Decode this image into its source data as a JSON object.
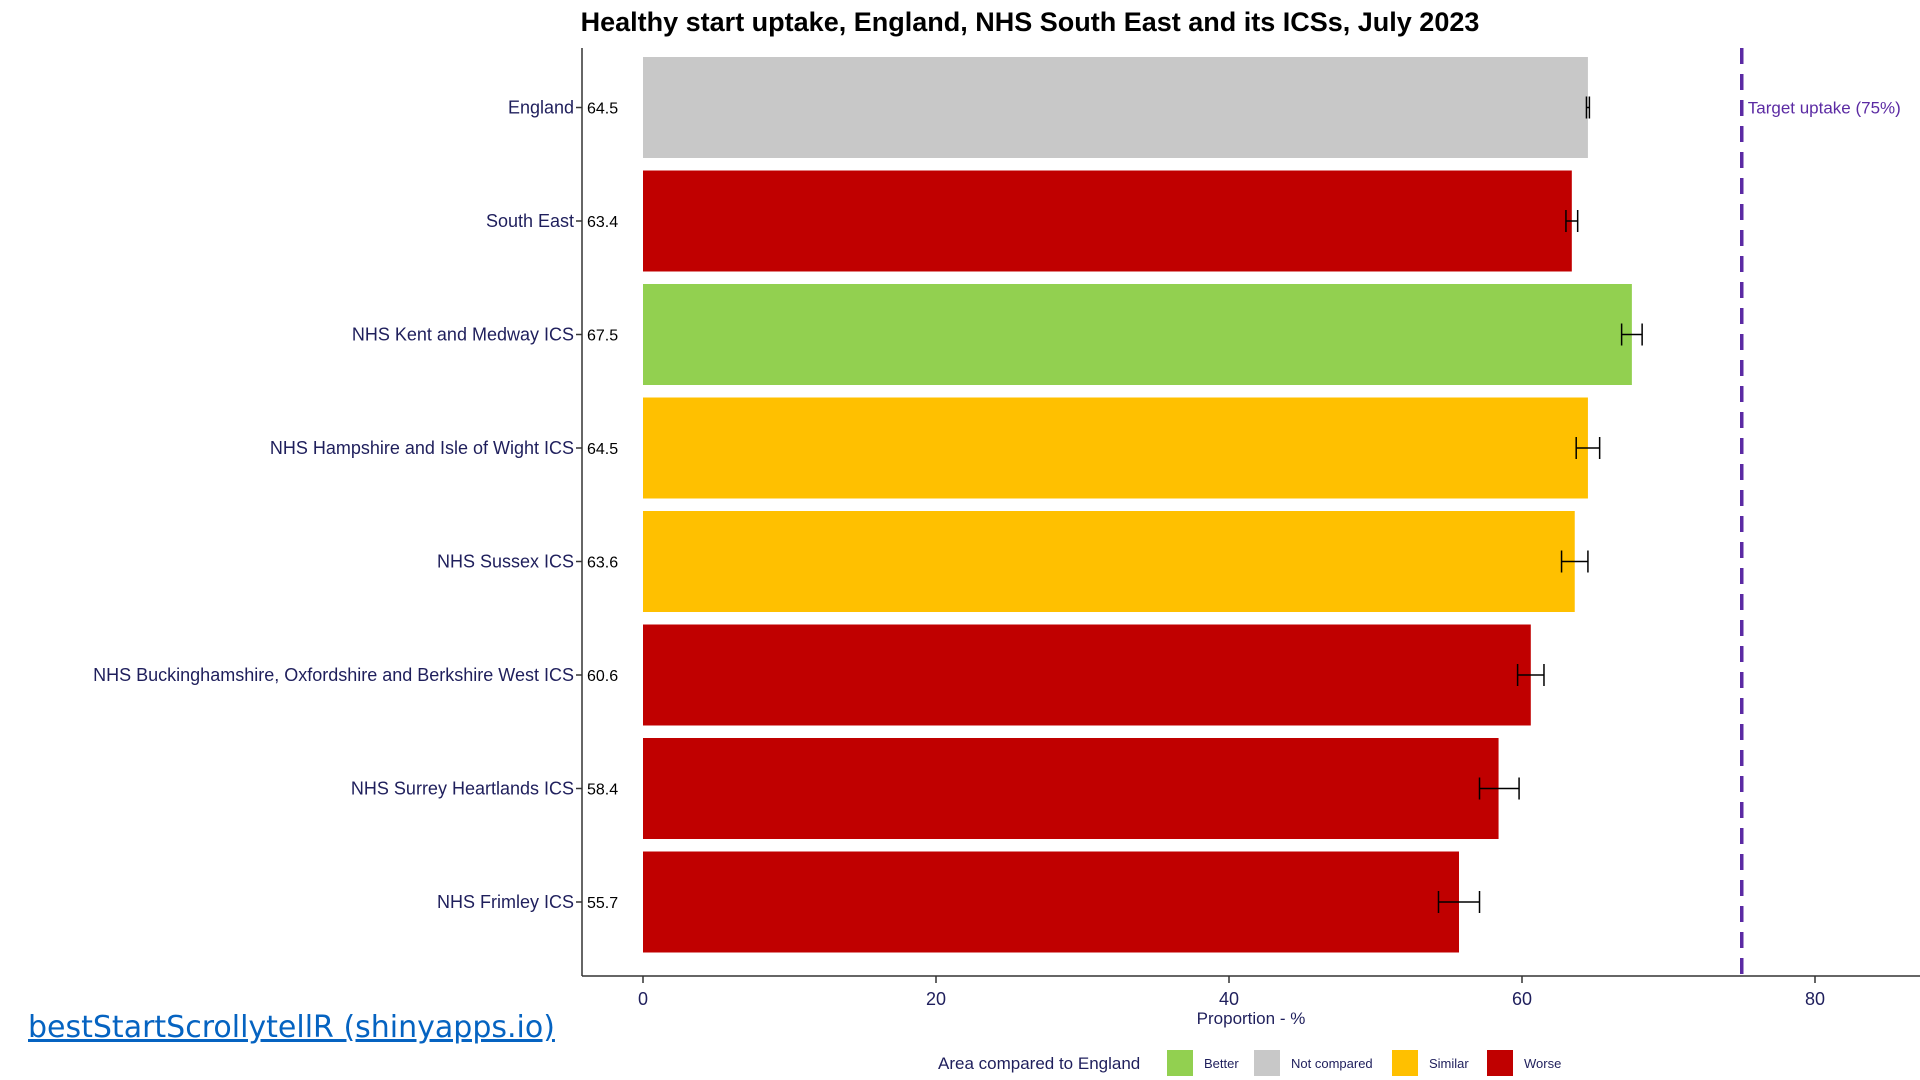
{
  "link": {
    "text": "bestStartScrollytellR (shinyapps.io)"
  },
  "colors": {
    "Better": "#92d050",
    "Not compared": "#c8c8c8",
    "Similar": "#ffc000",
    "Worse": "#c00000",
    "target_line": "#5b2aa3",
    "category_label": "#1f1f5c",
    "text": "#000000"
  },
  "chart_data": {
    "type": "bar",
    "orientation": "horizontal",
    "title": "Healthy start uptake, England, NHS South East and its ICSs, July 2023",
    "xlabel": "Proportion - %",
    "ylabel": "",
    "xlim": [
      -4,
      87
    ],
    "xticks": [
      0,
      20,
      40,
      60,
      80
    ],
    "grid": false,
    "categories": [
      "England",
      "South East",
      "NHS Kent and Medway ICS",
      "NHS Hampshire and Isle of Wight ICS",
      "NHS Sussex ICS",
      "NHS Buckinghamshire, Oxfordshire and Berkshire West ICS",
      "NHS Surrey Heartlands ICS",
      "NHS Frimley ICS"
    ],
    "values": [
      64.5,
      63.4,
      67.5,
      64.5,
      63.6,
      60.6,
      58.4,
      55.7
    ],
    "value_labels": [
      "64.5",
      "63.4",
      "67.5",
      "64.5",
      "63.6",
      "60.6",
      "58.4",
      "55.7"
    ],
    "error_low": [
      64.4,
      63.0,
      66.8,
      63.7,
      62.7,
      59.7,
      57.1,
      54.3
    ],
    "error_high": [
      64.6,
      63.8,
      68.2,
      65.3,
      64.5,
      61.5,
      59.8,
      57.1
    ],
    "comparison": [
      "Not compared",
      "Worse",
      "Better",
      "Similar",
      "Similar",
      "Worse",
      "Worse",
      "Worse"
    ],
    "reference_line": {
      "value": 75,
      "label": "Target uptake (75%)",
      "style": "dashed"
    },
    "legend": {
      "title": "Area compared to England",
      "position": "bottom",
      "entries": [
        "Better",
        "Not compared",
        "Similar",
        "Worse"
      ]
    }
  }
}
